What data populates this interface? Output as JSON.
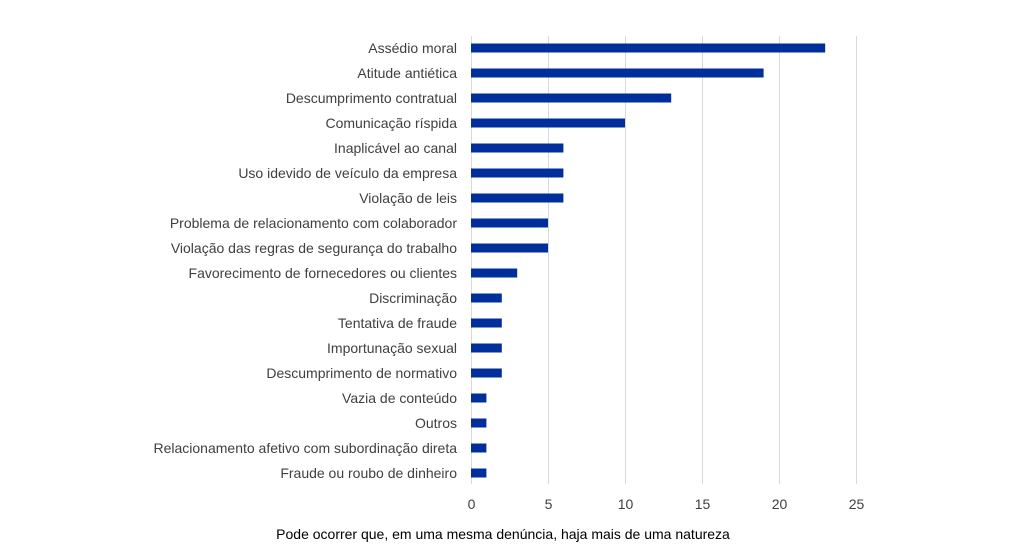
{
  "caption": "Pode ocorrer que, em uma mesma denúncia, haja mais de uma natureza",
  "chart_data": {
    "type": "bar",
    "orientation": "horizontal",
    "categories": [
      "Assédio moral",
      "Atitude antiética",
      "Descumprimento contratual",
      "Comunicação ríspida",
      "Inaplicável ao canal",
      "Uso idevido de veículo da empresa",
      "Violação de leis",
      "Problema de relacionamento com colaborador",
      "Violação das regras de segurança do trabalho",
      "Favorecimento de fornecedores ou clientes",
      "Discriminação",
      "Tentativa de fraude",
      "Importunação sexual",
      "Descumprimento de normativo",
      "Vazia de conteúdo",
      "Outros",
      "Relacionamento afetivo com subordinação direta",
      "Fraude ou roubo de dinheiro"
    ],
    "values": [
      23,
      19,
      13,
      10,
      6,
      6,
      6,
      5,
      5,
      3,
      2,
      2,
      2,
      2,
      1,
      1,
      1,
      1
    ],
    "xlim": [
      0,
      25
    ],
    "xticks": [
      0,
      5,
      10,
      15,
      20,
      25
    ],
    "grid": true,
    "legend": "none",
    "bar_color": "#002f9b",
    "title": "",
    "xlabel": "",
    "ylabel": ""
  }
}
